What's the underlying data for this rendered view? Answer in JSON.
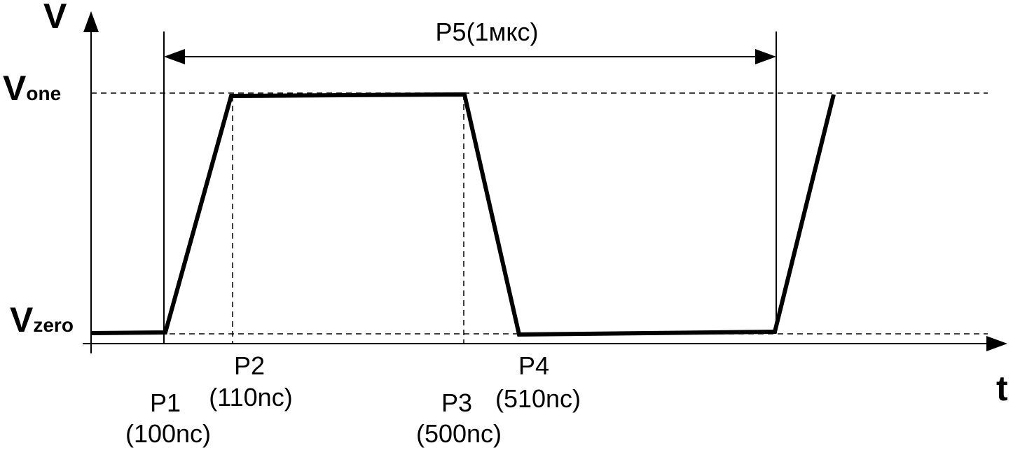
{
  "axes": {
    "y_label": "V",
    "x_label": "t"
  },
  "levels": [
    {
      "symbol": "V",
      "subscript": "one"
    },
    {
      "symbol": "V",
      "subscript": "zero"
    }
  ],
  "period": {
    "label": "P5(1мкс)"
  },
  "points": [
    {
      "name": "P1",
      "time": "(100nc)"
    },
    {
      "name": "P2",
      "time": "(110nc)"
    },
    {
      "name": "P3",
      "time": "(500nc)"
    },
    {
      "name": "P4",
      "time": "(510nc)"
    }
  ]
}
